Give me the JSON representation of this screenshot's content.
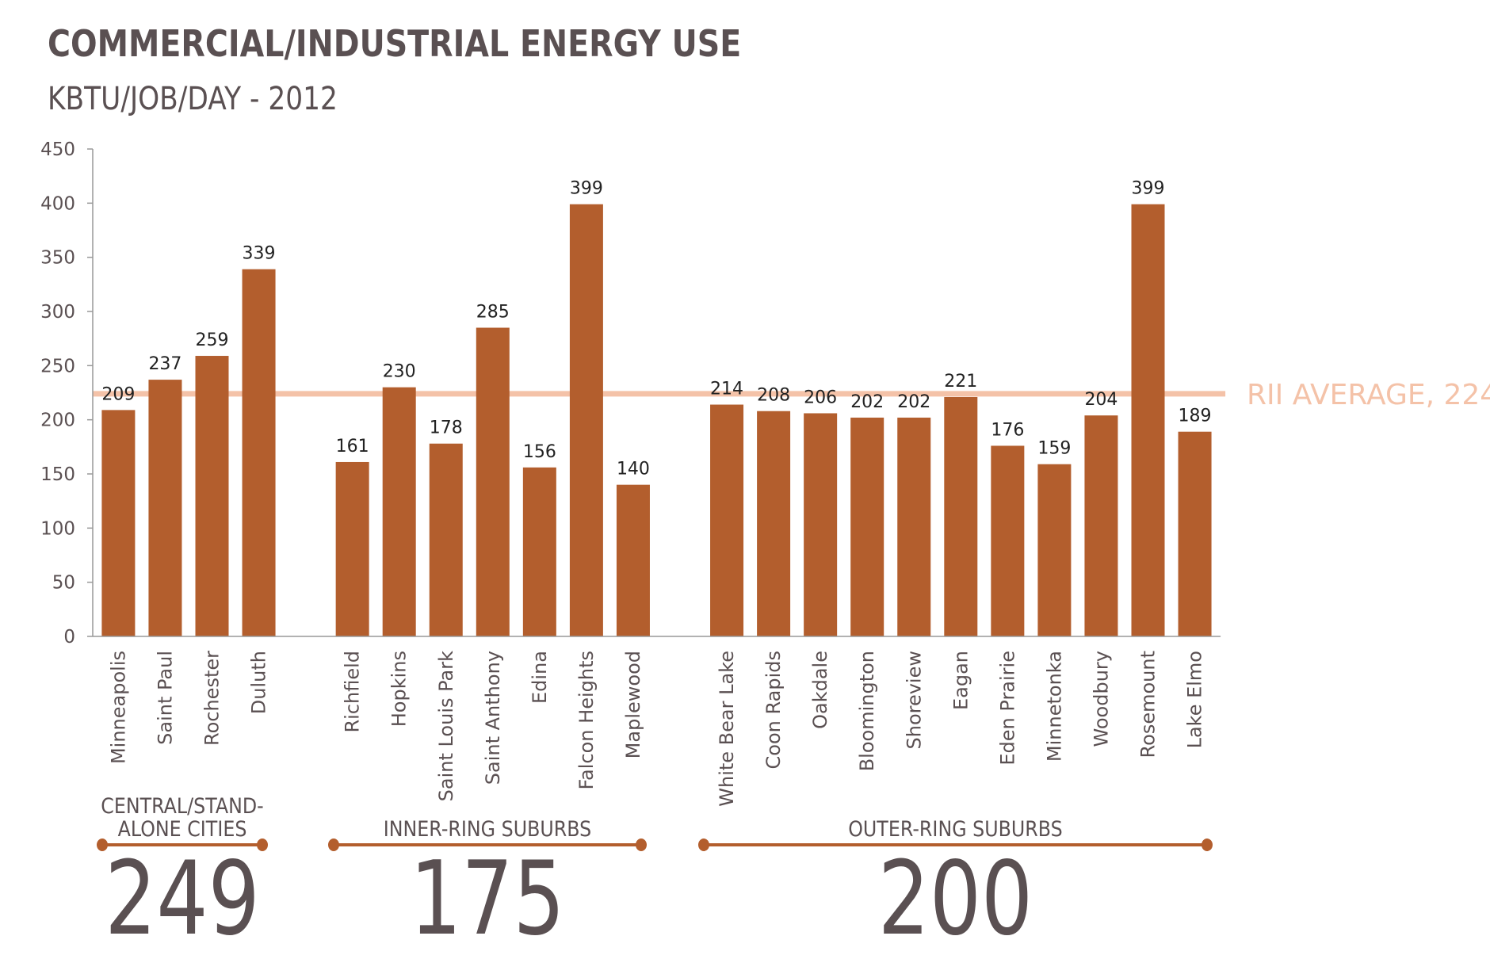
{
  "chart_data": {
    "type": "bar",
    "title": "COMMERCIAL/INDUSTRIAL ENERGY USE",
    "subtitle": "KBTU/JOB/DAY - 2012",
    "xlabel": "",
    "ylabel": "",
    "ylim": [
      0,
      450
    ],
    "yticks": [
      0,
      50,
      100,
      150,
      200,
      250,
      300,
      350,
      400,
      450
    ],
    "grid": false,
    "bar_color": "#B35E2D",
    "groups": [
      {
        "label": "CENTRAL/STAND-ALONE CITIES",
        "label_lines": [
          "CENTRAL/STAND-",
          "ALONE CITIES"
        ],
        "summary": "249",
        "categories": [
          "Minneapolis",
          "Saint Paul",
          "Rochester",
          "Duluth"
        ],
        "values": [
          209,
          237,
          259,
          339
        ]
      },
      {
        "label": "INNER-RING SUBURBS",
        "label_lines": [
          "INNER-RING SUBURBS"
        ],
        "summary": "175",
        "categories": [
          "Richfield",
          "Hopkins",
          "Saint Louis Park",
          "Saint Anthony",
          "Edina",
          "Falcon Heights",
          "Maplewood"
        ],
        "values": [
          161,
          230,
          178,
          285,
          156,
          399,
          140
        ]
      },
      {
        "label": "OUTER-RING SUBURBS",
        "label_lines": [
          "OUTER-RING SUBURBS"
        ],
        "summary": "200",
        "categories": [
          "White Bear Lake",
          "Coon Rapids",
          "Oakdale",
          "Bloomington",
          "Shoreview",
          "Eagan",
          "Eden Prairie",
          "Minnetonka",
          "Woodbury",
          "Rosemount",
          "Lake Elmo"
        ],
        "values": [
          214,
          208,
          206,
          202,
          202,
          221,
          176,
          159,
          204,
          399,
          189
        ]
      }
    ],
    "reference_line": {
      "label": "RII AVERAGE, 224",
      "value": 224,
      "color": "#F4C2A8"
    },
    "text_color": "#5a5052"
  }
}
